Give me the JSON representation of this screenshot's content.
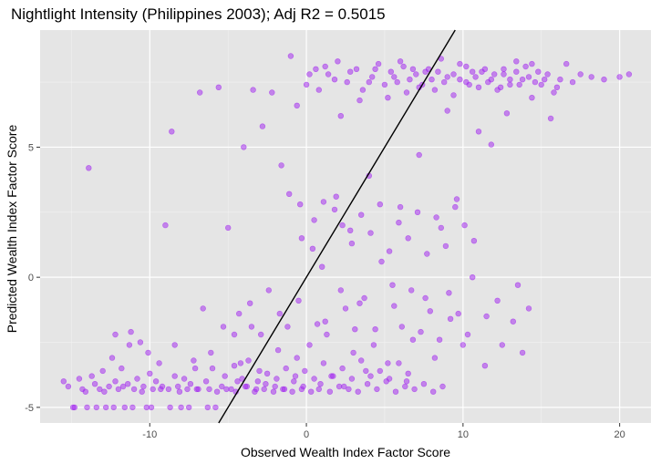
{
  "chart_data": {
    "type": "scatter",
    "title": "Nightlight Intensity (Philippines 2003); Adj R2 =  0.5015",
    "xlabel": "Observed Wealth Index Factor Score",
    "ylabel": "Predicted Wealth Index Factor Score",
    "xlim": [
      -17,
      22
    ],
    "ylim": [
      -5.6,
      9.5
    ],
    "x_ticks": [
      -10,
      0,
      10,
      20
    ],
    "y_ticks": [
      -5,
      0,
      5
    ],
    "x_tick_labels": [
      "-10",
      "0",
      "10",
      "20"
    ],
    "y_tick_labels": [
      "-5",
      "0",
      "5"
    ],
    "grid": true,
    "reference_line": {
      "slope": 1,
      "intercept": 0
    },
    "colors": {
      "panel_background": "#e5e5e5",
      "grid_major": "#ffffff",
      "grid_minor": "#f2f2f2",
      "point": "#a020f0",
      "line": "#000000"
    },
    "points": [
      [
        -15.5,
        -4.0
      ],
      [
        -15.2,
        -4.2
      ],
      [
        -14.8,
        -5.0
      ],
      [
        -14.5,
        -3.9
      ],
      [
        -14.3,
        -4.3
      ],
      [
        -14.0,
        -5.0
      ],
      [
        -13.9,
        4.2
      ],
      [
        -13.7,
        -3.8
      ],
      [
        -13.5,
        -4.1
      ],
      [
        -13.2,
        -4.3
      ],
      [
        -13.0,
        -3.6
      ],
      [
        -12.8,
        -5.0
      ],
      [
        -12.6,
        -4.2
      ],
      [
        -12.4,
        -3.1
      ],
      [
        -12.2,
        -4.0
      ],
      [
        -12.0,
        -4.3
      ],
      [
        -11.8,
        -3.5
      ],
      [
        -11.6,
        -5.0
      ],
      [
        -11.4,
        -4.1
      ],
      [
        -11.2,
        -2.1
      ],
      [
        -11.0,
        -4.3
      ],
      [
        -10.8,
        -3.9
      ],
      [
        -10.6,
        -2.5
      ],
      [
        -10.4,
        -4.2
      ],
      [
        -10.2,
        -5.0
      ],
      [
        -10.0,
        -3.7
      ],
      [
        -9.8,
        -4.3
      ],
      [
        -9.6,
        -4.0
      ],
      [
        -9.4,
        -3.3
      ],
      [
        -9.2,
        -4.2
      ],
      [
        -9.0,
        2.0
      ],
      [
        -8.8,
        -4.3
      ],
      [
        -8.6,
        5.6
      ],
      [
        -8.4,
        -3.8
      ],
      [
        -8.2,
        -4.2
      ],
      [
        -8.0,
        -5.0
      ],
      [
        -7.8,
        -3.9
      ],
      [
        -7.6,
        -4.3
      ],
      [
        -7.4,
        -4.1
      ],
      [
        -7.2,
        -3.2
      ],
      [
        -7.0,
        -4.3
      ],
      [
        -6.8,
        7.1
      ],
      [
        -6.6,
        -1.2
      ],
      [
        -6.4,
        -4.0
      ],
      [
        -6.2,
        -4.3
      ],
      [
        -6.0,
        -3.5
      ],
      [
        -5.8,
        -5.0
      ],
      [
        -5.6,
        7.3
      ],
      [
        -5.4,
        -4.2
      ],
      [
        -5.2,
        -3.8
      ],
      [
        -5.0,
        1.9
      ],
      [
        -4.8,
        -4.3
      ],
      [
        -4.6,
        -2.2
      ],
      [
        -4.4,
        -4.0
      ],
      [
        -4.2,
        -3.3
      ],
      [
        -4.0,
        5.0
      ],
      [
        -3.8,
        -4.2
      ],
      [
        -3.6,
        -1.0
      ],
      [
        -3.4,
        7.2
      ],
      [
        -3.2,
        -4.3
      ],
      [
        -3.0,
        -3.6
      ],
      [
        -2.8,
        5.8
      ],
      [
        -2.6,
        -4.1
      ],
      [
        -2.4,
        -0.5
      ],
      [
        -2.2,
        7.1
      ],
      [
        -2.0,
        -4.2
      ],
      [
        -1.8,
        -2.8
      ],
      [
        -1.6,
        4.3
      ],
      [
        -1.4,
        -4.3
      ],
      [
        -1.2,
        -1.9
      ],
      [
        -1.0,
        8.5
      ],
      [
        -0.8,
        -4.0
      ],
      [
        -0.6,
        -3.1
      ],
      [
        -0.4,
        2.8
      ],
      [
        -0.2,
        -4.2
      ],
      [
        0.0,
        7.4
      ],
      [
        0.2,
        -2.6
      ],
      [
        0.4,
        1.1
      ],
      [
        0.6,
        8.0
      ],
      [
        0.8,
        -4.3
      ],
      [
        1.0,
        0.4
      ],
      [
        1.2,
        -1.7
      ],
      [
        1.4,
        7.8
      ],
      [
        1.6,
        -3.8
      ],
      [
        1.8,
        2.6
      ],
      [
        2.0,
        8.3
      ],
      [
        2.2,
        -0.5
      ],
      [
        2.4,
        -4.2
      ],
      [
        2.6,
        7.5
      ],
      [
        2.8,
        1.8
      ],
      [
        3.0,
        -2.9
      ],
      [
        3.2,
        8.0
      ],
      [
        3.4,
        -1.0
      ],
      [
        3.6,
        7.2
      ],
      [
        3.8,
        -3.6
      ],
      [
        4.0,
        3.9
      ],
      [
        4.2,
        7.7
      ],
      [
        4.4,
        -2.0
      ],
      [
        4.6,
        8.2
      ],
      [
        4.8,
        0.6
      ],
      [
        5.0,
        7.4
      ],
      [
        5.2,
        -3.3
      ],
      [
        5.4,
        7.9
      ],
      [
        5.6,
        -1.1
      ],
      [
        5.8,
        7.5
      ],
      [
        6.0,
        2.7
      ],
      [
        6.2,
        8.1
      ],
      [
        6.4,
        -4.0
      ],
      [
        6.6,
        7.6
      ],
      [
        6.8,
        -2.4
      ],
      [
        7.0,
        7.8
      ],
      [
        7.2,
        4.7
      ],
      [
        7.4,
        7.4
      ],
      [
        7.6,
        -0.8
      ],
      [
        7.8,
        8.0
      ],
      [
        8.0,
        7.6
      ],
      [
        8.2,
        -3.1
      ],
      [
        8.4,
        7.9
      ],
      [
        8.6,
        1.9
      ],
      [
        8.8,
        7.5
      ],
      [
        9.0,
        6.4
      ],
      [
        9.2,
        -1.6
      ],
      [
        9.4,
        7.8
      ],
      [
        9.6,
        3.0
      ],
      [
        9.8,
        7.6
      ],
      [
        10.0,
        -2.6
      ],
      [
        10.2,
        8.1
      ],
      [
        10.4,
        7.4
      ],
      [
        10.6,
        0.0
      ],
      [
        10.8,
        7.7
      ],
      [
        11.0,
        5.6
      ],
      [
        11.2,
        7.9
      ],
      [
        11.4,
        -3.4
      ],
      [
        11.6,
        7.5
      ],
      [
        11.8,
        5.1
      ],
      [
        12.0,
        7.8
      ],
      [
        12.2,
        -0.9
      ],
      [
        12.4,
        7.3
      ],
      [
        12.6,
        8.0
      ],
      [
        12.8,
        6.3
      ],
      [
        13.0,
        7.6
      ],
      [
        13.2,
        -1.7
      ],
      [
        13.4,
        7.9
      ],
      [
        13.6,
        7.4
      ],
      [
        13.8,
        -2.9
      ],
      [
        14.0,
        8.1
      ],
      [
        14.2,
        7.7
      ],
      [
        14.4,
        6.9
      ],
      [
        14.6,
        7.5
      ],
      [
        14.8,
        7.9
      ],
      [
        15.0,
        7.4
      ],
      [
        15.4,
        7.8
      ],
      [
        15.8,
        7.1
      ],
      [
        16.2,
        7.6
      ],
      [
        16.6,
        8.2
      ],
      [
        17.0,
        7.5
      ],
      [
        17.5,
        7.8
      ],
      [
        18.2,
        7.7
      ],
      [
        19.0,
        7.6
      ],
      [
        20.0,
        7.7
      ],
      [
        20.6,
        7.8
      ],
      [
        -14.9,
        -5.0
      ],
      [
        -14.1,
        -4.4
      ],
      [
        -13.4,
        -5.0
      ],
      [
        -12.9,
        -4.4
      ],
      [
        -12.3,
        -5.0
      ],
      [
        -11.7,
        -4.2
      ],
      [
        -11.1,
        -5.0
      ],
      [
        -10.5,
        -4.4
      ],
      [
        -9.9,
        -5.0
      ],
      [
        -9.3,
        -4.3
      ],
      [
        -8.7,
        -5.0
      ],
      [
        -8.1,
        -4.4
      ],
      [
        -7.5,
        -5.0
      ],
      [
        -6.9,
        -4.3
      ],
      [
        -6.3,
        -5.0
      ],
      [
        -5.7,
        -4.4
      ],
      [
        -5.1,
        -4.3
      ],
      [
        -4.5,
        -4.4
      ],
      [
        -3.9,
        -4.2
      ],
      [
        -3.3,
        -4.4
      ],
      [
        -2.7,
        -4.3
      ],
      [
        -2.1,
        -4.4
      ],
      [
        -1.5,
        -4.3
      ],
      [
        -0.9,
        -4.4
      ],
      [
        -0.3,
        -4.3
      ],
      [
        0.3,
        -4.4
      ],
      [
        0.9,
        -4.1
      ],
      [
        1.5,
        -4.4
      ],
      [
        2.1,
        -4.2
      ],
      [
        2.7,
        -4.3
      ],
      [
        3.3,
        -4.4
      ],
      [
        3.9,
        -4.1
      ],
      [
        4.5,
        -4.3
      ],
      [
        5.1,
        -4.0
      ],
      [
        5.7,
        -4.4
      ],
      [
        6.3,
        -4.2
      ],
      [
        6.9,
        -4.3
      ],
      [
        7.5,
        -4.1
      ],
      [
        8.1,
        -4.4
      ],
      [
        8.7,
        -4.2
      ],
      [
        -4.6,
        -3.4
      ],
      [
        -4.1,
        -3.9
      ],
      [
        -3.7,
        -3.2
      ],
      [
        -3.1,
        -4.0
      ],
      [
        -2.5,
        -3.7
      ],
      [
        -1.9,
        -3.9
      ],
      [
        -1.3,
        -3.5
      ],
      [
        -0.7,
        -3.8
      ],
      [
        -0.1,
        -3.6
      ],
      [
        0.5,
        -3.9
      ],
      [
        1.1,
        -3.3
      ],
      [
        1.7,
        -3.8
      ],
      [
        2.3,
        -3.5
      ],
      [
        2.9,
        -3.9
      ],
      [
        3.5,
        -3.2
      ],
      [
        4.1,
        -3.8
      ],
      [
        4.7,
        -3.6
      ],
      [
        5.3,
        -3.9
      ],
      [
        5.9,
        -3.3
      ],
      [
        6.5,
        -3.7
      ],
      [
        -12.2,
        -2.2
      ],
      [
        -11.3,
        -2.6
      ],
      [
        -10.1,
        -2.9
      ],
      [
        -8.4,
        -2.6
      ],
      [
        -7.1,
        -3.5
      ],
      [
        -6.1,
        -2.9
      ],
      [
        -5.3,
        -1.9
      ],
      [
        -4.3,
        -1.4
      ],
      [
        -3.5,
        -1.9
      ],
      [
        -2.9,
        -2.2
      ],
      [
        -1.7,
        -1.4
      ],
      [
        -0.5,
        -0.9
      ],
      [
        0.7,
        -1.8
      ],
      [
        1.3,
        -2.2
      ],
      [
        2.5,
        -1.2
      ],
      [
        3.1,
        -2.0
      ],
      [
        3.7,
        -0.8
      ],
      [
        4.3,
        -2.6
      ],
      [
        5.5,
        -0.3
      ],
      [
        6.1,
        -1.9
      ],
      [
        6.7,
        -0.5
      ],
      [
        7.3,
        -2.1
      ],
      [
        7.9,
        -1.3
      ],
      [
        8.5,
        -2.4
      ],
      [
        9.1,
        -0.6
      ],
      [
        9.7,
        -1.4
      ],
      [
        10.3,
        -2.2
      ],
      [
        11.5,
        -1.5
      ],
      [
        12.5,
        -2.6
      ],
      [
        13.5,
        -0.3
      ],
      [
        14.2,
        -1.2
      ],
      [
        -1.1,
        3.2
      ],
      [
        -0.3,
        1.5
      ],
      [
        0.5,
        2.2
      ],
      [
        1.1,
        2.9
      ],
      [
        1.9,
        3.1
      ],
      [
        2.3,
        2.0
      ],
      [
        2.9,
        1.3
      ],
      [
        3.5,
        2.4
      ],
      [
        4.1,
        1.7
      ],
      [
        4.7,
        2.8
      ],
      [
        5.3,
        1.0
      ],
      [
        5.9,
        2.1
      ],
      [
        6.5,
        1.5
      ],
      [
        7.1,
        2.5
      ],
      [
        7.7,
        0.9
      ],
      [
        8.3,
        2.3
      ],
      [
        8.9,
        1.2
      ],
      [
        9.5,
        2.7
      ],
      [
        10.1,
        2.0
      ],
      [
        10.7,
        1.4
      ],
      [
        -0.6,
        6.6
      ],
      [
        0.2,
        7.8
      ],
      [
        0.8,
        7.2
      ],
      [
        1.2,
        8.1
      ],
      [
        1.8,
        7.6
      ],
      [
        2.2,
        6.2
      ],
      [
        2.8,
        7.9
      ],
      [
        3.4,
        6.8
      ],
      [
        4.0,
        7.5
      ],
      [
        4.4,
        8.0
      ],
      [
        5.2,
        6.9
      ],
      [
        5.6,
        7.7
      ],
      [
        6.0,
        8.3
      ],
      [
        6.4,
        7.1
      ],
      [
        6.8,
        8.0
      ],
      [
        7.2,
        7.3
      ],
      [
        7.6,
        7.9
      ],
      [
        8.2,
        7.2
      ],
      [
        8.6,
        8.4
      ],
      [
        9.0,
        7.7
      ],
      [
        9.4,
        7.0
      ],
      [
        9.8,
        8.2
      ],
      [
        10.2,
        7.5
      ],
      [
        10.6,
        7.9
      ],
      [
        11.0,
        7.3
      ],
      [
        11.4,
        8.0
      ],
      [
        11.8,
        7.6
      ],
      [
        12.2,
        7.2
      ],
      [
        12.6,
        7.8
      ],
      [
        13.0,
        7.4
      ],
      [
        13.4,
        8.3
      ],
      [
        13.8,
        7.6
      ],
      [
        14.4,
        8.2
      ],
      [
        15.2,
        7.6
      ],
      [
        15.6,
        6.1
      ],
      [
        16.0,
        7.3
      ]
    ]
  }
}
